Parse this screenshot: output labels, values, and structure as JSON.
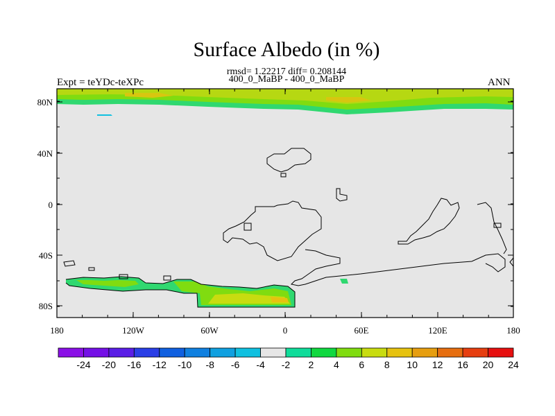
{
  "title": "Surface Albedo (in %)",
  "stats": "rmsd= 1.22217 diff= 0.208144",
  "period": "400_0_MaBP - 400_0_MaBP",
  "expt": "Expt = teYDc-teXPc",
  "season": "ANN",
  "lat_labels": [
    "80N",
    "40N",
    "0",
    "40S",
    "80S"
  ],
  "lon_labels": [
    "180",
    "120W",
    "60W",
    "0",
    "60E",
    "120E",
    "180"
  ],
  "colorbar": {
    "labels": [
      "-24",
      "-20",
      "-16",
      "-12",
      "-10",
      "-8",
      "-6",
      "-4",
      "-2",
      "2",
      "4",
      "6",
      "8",
      "10",
      "12",
      "16",
      "20",
      "24"
    ],
    "colors": [
      "#8a10e6",
      "#7410e6",
      "#5a1ee6",
      "#2a3ee6",
      "#1060e0",
      "#1080e0",
      "#10a0e0",
      "#10c0e0",
      "#e6e6e6",
      "#10dc9a",
      "#10d840",
      "#80dc10",
      "#c8dc10",
      "#e6c210",
      "#e69e10",
      "#e66e10",
      "#e63e10",
      "#e61010"
    ]
  },
  "map": {
    "lat_range": [
      -90,
      90
    ],
    "lon_range": [
      -180,
      180
    ],
    "background_color": "#e6e6e6"
  }
}
